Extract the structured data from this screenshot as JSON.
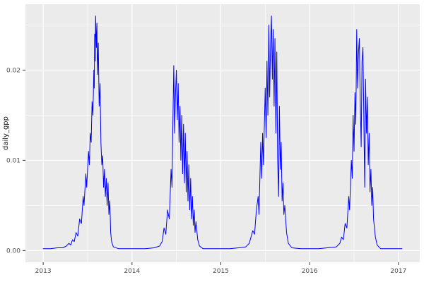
{
  "chart_data": {
    "type": "line",
    "title": "",
    "subtitle": "",
    "xlabel": "",
    "ylabel": "daily_gpp",
    "legend": false,
    "grid": true,
    "theme": "ggplot-gray",
    "panel_background": "#EBEBEB",
    "grid_major_color": "#FFFFFF",
    "grid_minor_color": "#FFFFFF",
    "line_color": "#0000FF",
    "tick_label_color": "#4D4D4D",
    "axis_title_color": "#1A1A1A",
    "tick_mark_color": "#333333",
    "xlim": [
      2012.8,
      2017.24
    ],
    "ylim": [
      -0.0013,
      0.0273
    ],
    "x_ticks": [
      2013,
      2014,
      2015,
      2016,
      2017
    ],
    "x_tick_labels": [
      "2013",
      "2014",
      "2015",
      "2016",
      "2017"
    ],
    "x_minor_ticks": [
      2013.5,
      2014.5,
      2015.5,
      2016.5
    ],
    "y_ticks": [
      0.0,
      0.01,
      0.02
    ],
    "y_tick_labels": [
      "0.00",
      "0.01",
      "0.02"
    ],
    "y_minor_ticks": [
      0.005,
      0.015,
      0.025
    ],
    "series": [
      {
        "name": "daily_gpp",
        "points": [
          [
            2013.0,
            0.0002
          ],
          [
            2013.08,
            0.0002
          ],
          [
            2013.16,
            0.0003
          ],
          [
            2013.22,
            0.0003
          ],
          [
            2013.26,
            0.0005
          ],
          [
            2013.29,
            0.0008
          ],
          [
            2013.31,
            0.0006
          ],
          [
            2013.33,
            0.0012
          ],
          [
            2013.35,
            0.001
          ],
          [
            2013.37,
            0.002
          ],
          [
            2013.39,
            0.0016
          ],
          [
            2013.41,
            0.0035
          ],
          [
            2013.43,
            0.003
          ],
          [
            2013.45,
            0.006
          ],
          [
            2013.46,
            0.005
          ],
          [
            2013.48,
            0.0085
          ],
          [
            2013.49,
            0.007
          ],
          [
            2013.51,
            0.011
          ],
          [
            2013.52,
            0.0095
          ],
          [
            2013.53,
            0.013
          ],
          [
            2013.54,
            0.012
          ],
          [
            2013.55,
            0.0165
          ],
          [
            2013.56,
            0.015
          ],
          [
            2013.57,
            0.02
          ],
          [
            2013.575,
            0.018
          ],
          [
            2013.58,
            0.024
          ],
          [
            2013.585,
            0.021
          ],
          [
            2013.59,
            0.026
          ],
          [
            2013.6,
            0.0225
          ],
          [
            2013.605,
            0.0252
          ],
          [
            2013.61,
            0.0195
          ],
          [
            2013.62,
            0.023
          ],
          [
            2013.63,
            0.016
          ],
          [
            2013.64,
            0.0185
          ],
          [
            2013.65,
            0.012
          ],
          [
            2013.66,
            0.0095
          ],
          [
            2013.67,
            0.0105
          ],
          [
            2013.68,
            0.007
          ],
          [
            2013.69,
            0.009
          ],
          [
            2013.7,
            0.006
          ],
          [
            2013.71,
            0.008
          ],
          [
            2013.72,
            0.005
          ],
          [
            2013.73,
            0.0075
          ],
          [
            2013.74,
            0.004
          ],
          [
            2013.75,
            0.0055
          ],
          [
            2013.76,
            0.002
          ],
          [
            2013.77,
            0.001
          ],
          [
            2013.79,
            0.0004
          ],
          [
            2013.85,
            0.0002
          ],
          [
            2013.95,
            0.0002
          ],
          [
            2014.05,
            0.0002
          ],
          [
            2014.15,
            0.0002
          ],
          [
            2014.25,
            0.0003
          ],
          [
            2014.31,
            0.0005
          ],
          [
            2014.34,
            0.001
          ],
          [
            2014.36,
            0.0025
          ],
          [
            2014.38,
            0.0018
          ],
          [
            2014.4,
            0.0045
          ],
          [
            2014.42,
            0.0035
          ],
          [
            2014.44,
            0.009
          ],
          [
            2014.45,
            0.007
          ],
          [
            2014.46,
            0.014
          ],
          [
            2014.47,
            0.0205
          ],
          [
            2014.48,
            0.013
          ],
          [
            2014.49,
            0.0175
          ],
          [
            2014.5,
            0.02
          ],
          [
            2014.51,
            0.0145
          ],
          [
            2014.52,
            0.0185
          ],
          [
            2014.53,
            0.012
          ],
          [
            2014.54,
            0.016
          ],
          [
            2014.55,
            0.01
          ],
          [
            2014.56,
            0.015
          ],
          [
            2014.57,
            0.0085
          ],
          [
            2014.58,
            0.014
          ],
          [
            2014.59,
            0.0075
          ],
          [
            2014.6,
            0.013
          ],
          [
            2014.61,
            0.0065
          ],
          [
            2014.62,
            0.011
          ],
          [
            2014.63,
            0.0055
          ],
          [
            2014.64,
            0.0095
          ],
          [
            2014.65,
            0.0045
          ],
          [
            2014.66,
            0.008
          ],
          [
            2014.67,
            0.0035
          ],
          [
            2014.68,
            0.006
          ],
          [
            2014.69,
            0.0028
          ],
          [
            2014.7,
            0.0045
          ],
          [
            2014.71,
            0.002
          ],
          [
            2014.72,
            0.0032
          ],
          [
            2014.74,
            0.0012
          ],
          [
            2014.76,
            0.0005
          ],
          [
            2014.8,
            0.0002
          ],
          [
            2014.9,
            0.0002
          ],
          [
            2015.0,
            0.0002
          ],
          [
            2015.1,
            0.0002
          ],
          [
            2015.2,
            0.0003
          ],
          [
            2015.28,
            0.0004
          ],
          [
            2015.32,
            0.0008
          ],
          [
            2015.34,
            0.0015
          ],
          [
            2015.36,
            0.0022
          ],
          [
            2015.38,
            0.0018
          ],
          [
            2015.4,
            0.0045
          ],
          [
            2015.42,
            0.006
          ],
          [
            2015.43,
            0.004
          ],
          [
            2015.45,
            0.012
          ],
          [
            2015.46,
            0.008
          ],
          [
            2015.47,
            0.013
          ],
          [
            2015.48,
            0.0095
          ],
          [
            2015.5,
            0.018
          ],
          [
            2015.51,
            0.0125
          ],
          [
            2015.52,
            0.021
          ],
          [
            2015.53,
            0.015
          ],
          [
            2015.54,
            0.025
          ],
          [
            2015.55,
            0.017
          ],
          [
            2015.56,
            0.023
          ],
          [
            2015.57,
            0.026
          ],
          [
            2015.58,
            0.019
          ],
          [
            2015.59,
            0.0245
          ],
          [
            2015.6,
            0.016
          ],
          [
            2015.61,
            0.0235
          ],
          [
            2015.62,
            0.013
          ],
          [
            2015.63,
            0.022
          ],
          [
            2015.64,
            0.01
          ],
          [
            2015.65,
            0.006
          ],
          [
            2015.66,
            0.016
          ],
          [
            2015.67,
            0.009
          ],
          [
            2015.68,
            0.012
          ],
          [
            2015.69,
            0.0055
          ],
          [
            2015.7,
            0.0075
          ],
          [
            2015.71,
            0.004
          ],
          [
            2015.72,
            0.005
          ],
          [
            2015.74,
            0.002
          ],
          [
            2015.76,
            0.0008
          ],
          [
            2015.8,
            0.0003
          ],
          [
            2015.9,
            0.0002
          ],
          [
            2016.0,
            0.0002
          ],
          [
            2016.1,
            0.0002
          ],
          [
            2016.2,
            0.0003
          ],
          [
            2016.3,
            0.0004
          ],
          [
            2016.34,
            0.0008
          ],
          [
            2016.36,
            0.0015
          ],
          [
            2016.38,
            0.0012
          ],
          [
            2016.4,
            0.003
          ],
          [
            2016.42,
            0.0025
          ],
          [
            2016.44,
            0.006
          ],
          [
            2016.45,
            0.0045
          ],
          [
            2016.47,
            0.01
          ],
          [
            2016.48,
            0.008
          ],
          [
            2016.49,
            0.015
          ],
          [
            2016.5,
            0.011
          ],
          [
            2016.51,
            0.0175
          ],
          [
            2016.52,
            0.014
          ],
          [
            2016.53,
            0.0245
          ],
          [
            2016.54,
            0.018
          ],
          [
            2016.55,
            0.022
          ],
          [
            2016.56,
            0.0235
          ],
          [
            2016.57,
            0.0165
          ],
          [
            2016.58,
            0.0115
          ],
          [
            2016.59,
            0.021
          ],
          [
            2016.6,
            0.0225
          ],
          [
            2016.61,
            0.015
          ],
          [
            2016.62,
            0.007
          ],
          [
            2016.63,
            0.019
          ],
          [
            2016.64,
            0.013
          ],
          [
            2016.65,
            0.017
          ],
          [
            2016.66,
            0.0095
          ],
          [
            2016.67,
            0.013
          ],
          [
            2016.68,
            0.0065
          ],
          [
            2016.69,
            0.009
          ],
          [
            2016.7,
            0.005
          ],
          [
            2016.71,
            0.007
          ],
          [
            2016.72,
            0.0035
          ],
          [
            2016.74,
            0.0015
          ],
          [
            2016.76,
            0.0006
          ],
          [
            2016.8,
            0.0002
          ],
          [
            2016.9,
            0.0002
          ],
          [
            2017.0,
            0.0002
          ],
          [
            2017.04,
            0.0002
          ]
        ]
      }
    ]
  }
}
